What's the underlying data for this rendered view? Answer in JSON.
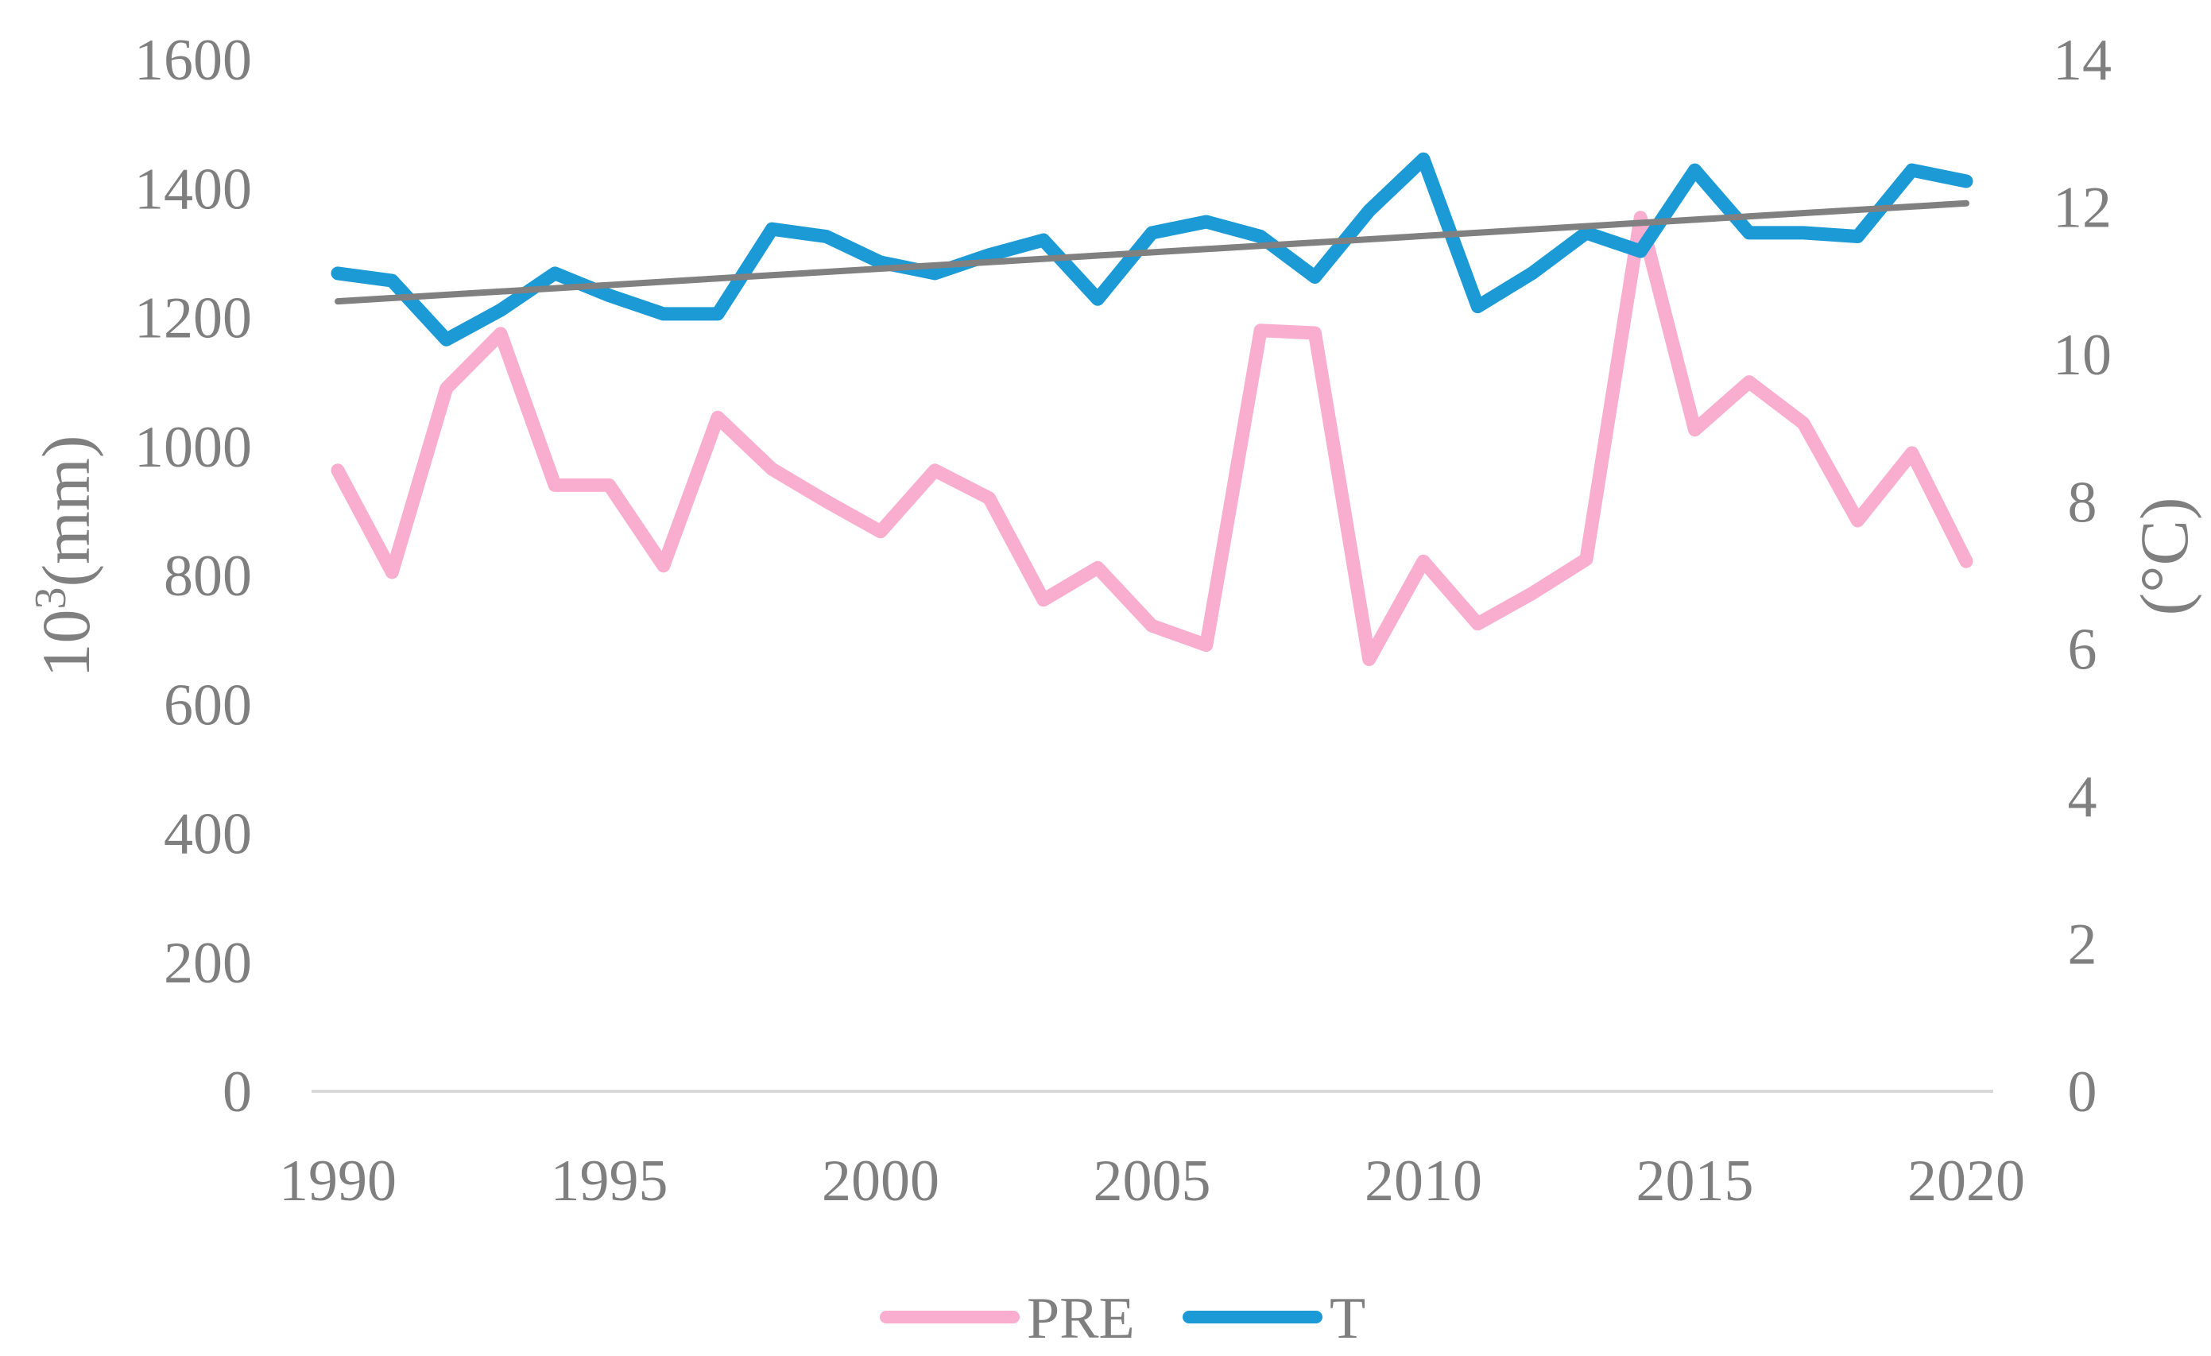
{
  "chart_data": {
    "type": "line",
    "title": "",
    "xlabel": "",
    "ylabel_left": "10³(mm)",
    "ylabel_left_base": "10",
    "ylabel_left_exp": "3",
    "ylabel_left_unit": "(mm)",
    "ylabel_right": "(°C)",
    "left_axis": {
      "range": [
        0,
        1600
      ],
      "ticks": [
        "0",
        "200",
        "400",
        "600",
        "800",
        "1000",
        "1200",
        "1400",
        "1600"
      ]
    },
    "right_axis": {
      "range": [
        0,
        14
      ],
      "ticks": [
        "0",
        "2",
        "4",
        "6",
        "8",
        "10",
        "12",
        "14"
      ]
    },
    "x_axis": {
      "range": [
        1990,
        2020
      ],
      "ticks": [
        "1990",
        "1995",
        "2000",
        "2005",
        "2010",
        "2015",
        "2020"
      ]
    },
    "x": [
      1990,
      1991,
      1992,
      1993,
      1994,
      1995,
      1996,
      1997,
      1998,
      1999,
      2000,
      2001,
      2002,
      2003,
      2004,
      2005,
      2006,
      2007,
      2008,
      2009,
      2010,
      2011,
      2012,
      2013,
      2014,
      2015,
      2016,
      2017,
      2018,
      2019,
      2020
    ],
    "series": [
      {
        "name": "PRE",
        "axis": "left",
        "color": "#f9aecf",
        "values": [
          963,
          805,
          1090,
          1175,
          940,
          940,
          815,
          1045,
          965,
          915,
          868,
          963,
          920,
          762,
          812,
          722,
          692,
          1180,
          1176,
          670,
          822,
          725,
          772,
          825,
          1355,
          1026,
          1100,
          1036,
          885,
          990,
          822
        ]
      },
      {
        "name": "T",
        "axis": "right",
        "color": "#1b9ad6",
        "values": [
          11.1,
          11.0,
          10.2,
          10.6,
          11.1,
          10.8,
          10.55,
          10.55,
          11.7,
          11.6,
          11.25,
          11.1,
          11.35,
          11.55,
          10.75,
          11.65,
          11.8,
          11.6,
          11.05,
          11.95,
          12.65,
          10.65,
          11.1,
          11.65,
          11.4,
          12.5,
          11.65,
          11.65,
          11.6,
          12.5,
          12.35
        ]
      }
    ],
    "trendline": {
      "of": "T",
      "axis": "right",
      "color": "#808080",
      "start": 10.72,
      "end": 12.05
    },
    "legend": {
      "position": "bottom-center",
      "entries": [
        "PRE",
        "T"
      ]
    },
    "grid": false
  }
}
